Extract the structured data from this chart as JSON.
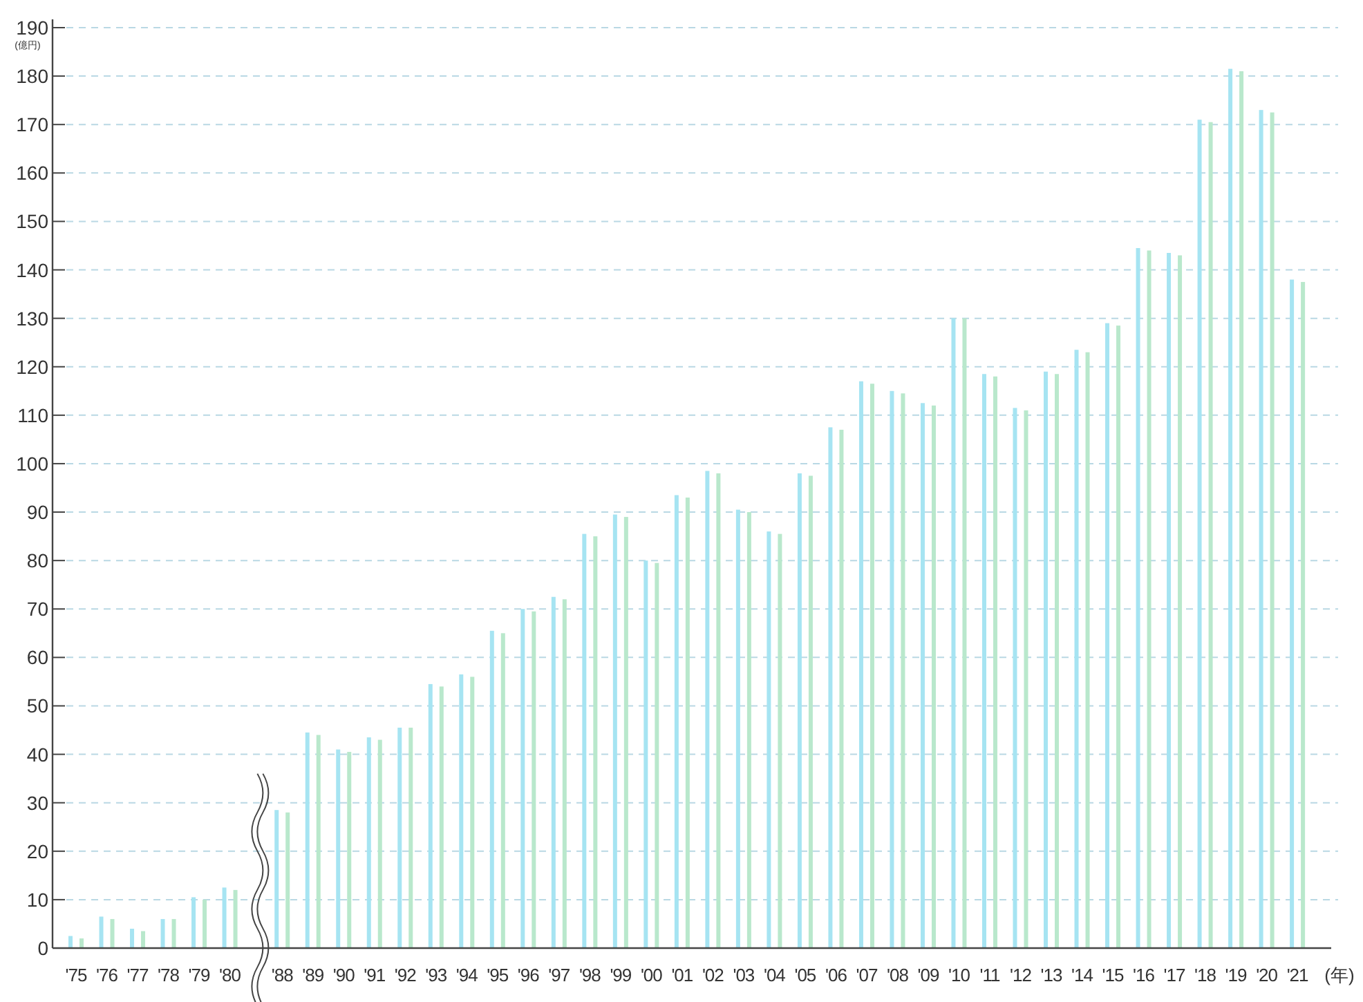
{
  "chart_data": {
    "type": "bar",
    "xlabel": "(年)",
    "ylabel": "(億円)",
    "categories": [
      "'75",
      "'76",
      "'77",
      "'78",
      "'79",
      "'80",
      "'88",
      "'89",
      "'90",
      "'91",
      "'92",
      "'93",
      "'94",
      "'95",
      "'96",
      "'97",
      "'98",
      "'99",
      "'00",
      "'01",
      "'02",
      "'03",
      "'04",
      "'05",
      "'06",
      "'07",
      "'08",
      "'09",
      "'10",
      "'11",
      "'12",
      "'13",
      "'14",
      "'15",
      "'16",
      "'17",
      "'18",
      "'19",
      "'20",
      "'21"
    ],
    "series": [
      {
        "color": "#a6e4f2",
        "values": [
          2.5,
          6.5,
          4,
          6,
          10.5,
          12.5,
          28.5,
          44.5,
          41,
          43.5,
          45.5,
          54.5,
          56.5,
          65.5,
          70,
          72.5,
          85.5,
          89.5,
          80,
          93.5,
          98.5,
          90.5,
          86,
          98,
          107.5,
          117,
          115,
          112.5,
          130,
          118.5,
          111.5,
          119,
          123.5,
          129,
          144.5,
          143.5,
          171,
          181.5,
          173,
          138
        ]
      },
      {
        "color": "#b9e8cc",
        "values": [
          2,
          6,
          3.5,
          6,
          10,
          12,
          28,
          44,
          40.5,
          43,
          45.5,
          54,
          56,
          65,
          69.5,
          72,
          85,
          89,
          79.5,
          93,
          98,
          90,
          85.5,
          97.5,
          107,
          116.5,
          114.5,
          112,
          130,
          118,
          111,
          118.5,
          123,
          128.5,
          144,
          143,
          170.5,
          181,
          172.5,
          137.5
        ]
      }
    ],
    "ylim": [
      0,
      190
    ],
    "yticks": [
      0,
      10,
      20,
      30,
      40,
      50,
      60,
      70,
      80,
      90,
      100,
      110,
      120,
      130,
      140,
      150,
      160,
      170,
      180,
      190
    ],
    "grid": "y"
  }
}
